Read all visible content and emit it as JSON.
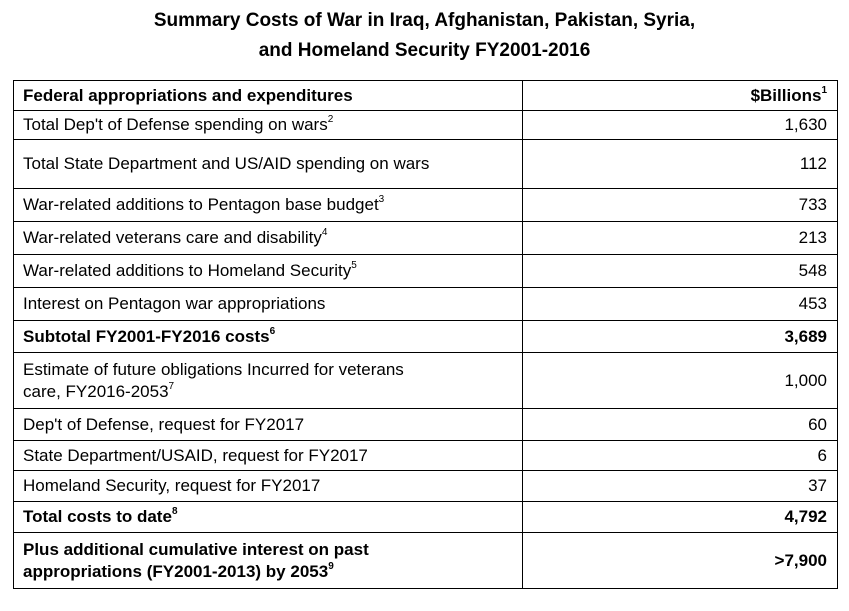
{
  "title": {
    "line1": "Summary Costs of War in Iraq, Afghanistan, Pakistan, Syria,",
    "line2": "and Homeland Security FY2001-2016"
  },
  "table": {
    "header": {
      "label": "Federal appropriations and expenditures",
      "unit": "$Billions",
      "unit_note": "1"
    },
    "rows": [
      {
        "label": "Total Dep't of Defense spending on wars",
        "note": "2",
        "value": "1,630",
        "bold": false
      },
      {
        "label": "Total State Department and US/AID spending on wars",
        "note": "",
        "value": "112",
        "bold": false
      },
      {
        "label": "War-related additions to Pentagon base budget",
        "note": "3",
        "value": "733",
        "bold": false
      },
      {
        "label": "War-related veterans care and disability",
        "note": "4",
        "value": "213",
        "bold": false
      },
      {
        "label": "War-related additions to Homeland Security",
        "note": "5",
        "value": "548",
        "bold": false
      },
      {
        "label": "Interest on Pentagon war appropriations",
        "note": "",
        "value": "453",
        "bold": false
      },
      {
        "label": "Subtotal FY2001-FY2016 costs",
        "note": "6",
        "value": "3,689",
        "bold": true
      },
      {
        "label_line1": "Estimate of future obligations Incurred for veterans",
        "label_line2": "care, FY2016-2053",
        "note": "7",
        "value": "1,000",
        "bold": false
      },
      {
        "label": "Dep't of Defense, request for FY2017",
        "note": "",
        "value": "60",
        "bold": false
      },
      {
        "label": "State Department/USAID, request for FY2017",
        "note": "",
        "value": "6",
        "bold": false
      },
      {
        "label": "Homeland Security, request for FY2017",
        "note": "",
        "value": "37",
        "bold": false
      },
      {
        "label": "Total costs to date",
        "note": "8",
        "value": "4,792",
        "bold": true
      },
      {
        "label_line1": "Plus additional cumulative interest on past",
        "label_line2": "appropriations (FY2001-2013) by 2053",
        "note": "9",
        "value": ">7,900",
        "bold": true
      }
    ]
  }
}
